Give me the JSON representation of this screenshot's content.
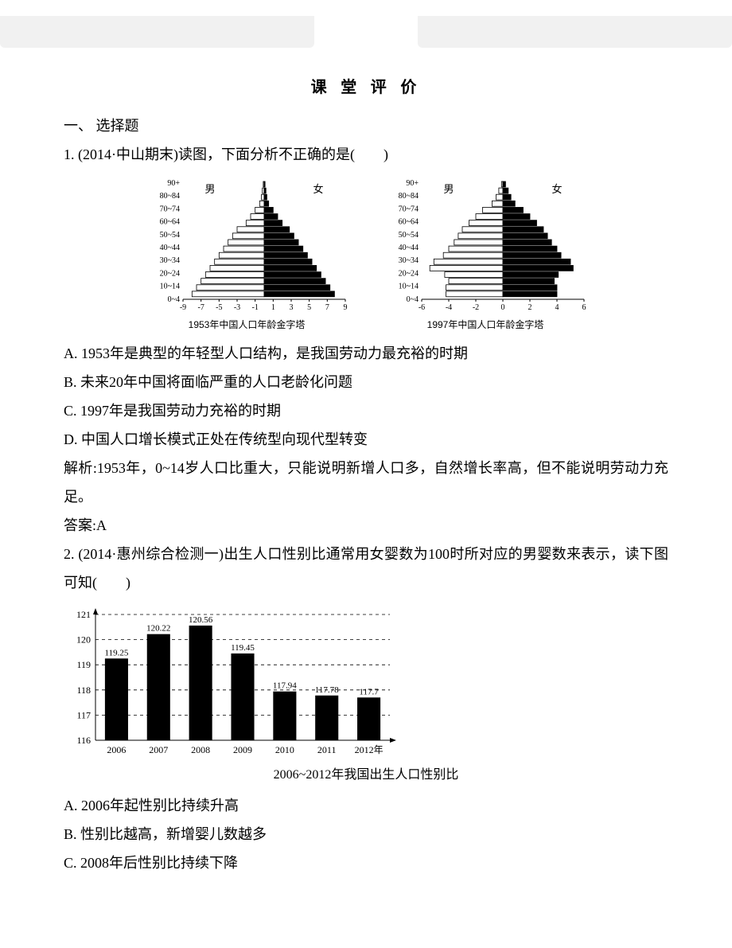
{
  "title": "课 堂 评 价",
  "section": "一、 选择题",
  "q1": {
    "stem": "1. (2014·中山期末)读图，下面分析不正确的是(　　)",
    "optA": "A. 1953年是典型的年轻型人口结构，是我国劳动力最充裕的时期",
    "optB": "B. 未来20年中国将面临严重的人口老龄化问题",
    "optC": "C. 1997年是我国劳动力充裕的时期",
    "optD": "D. 中国人口增长模式正处在传统型向现代型转变",
    "expl": "解析:1953年，0~14岁人口比重大，只能说明新增人口多，自然增长率高，但不能说明劳动力充足。",
    "ans": "答案:A",
    "pyramids": {
      "age_labels": [
        "90+",
        "80~84",
        "70~74",
        "60~64",
        "50~54",
        "40~44",
        "30~34",
        "20~24",
        "10~14",
        "0~4"
      ],
      "male_label": "男",
      "female_label": "女",
      "left": {
        "caption": "1953年中国人口年龄金字塔",
        "ticks": [
          "-9",
          "-7",
          "-5",
          "-3",
          "-1",
          "1",
          "3",
          "5",
          "7",
          "9"
        ],
        "male": [
          0.1,
          0.2,
          0.3,
          0.5,
          1.0,
          1.5,
          2.0,
          3.0,
          3.5,
          4.0,
          4.5,
          5.0,
          5.5,
          6.0,
          6.5,
          7.0,
          7.5,
          8.0
        ],
        "female": [
          0.1,
          0.2,
          0.3,
          0.5,
          1.0,
          1.5,
          2.0,
          2.8,
          3.3,
          3.8,
          4.3,
          4.8,
          5.3,
          5.8,
          6.3,
          6.8,
          7.3,
          7.8
        ],
        "max": 9
      },
      "right": {
        "caption": "1997年中国人口年龄金字塔",
        "ticks": [
          "-6",
          "-4",
          "-2",
          "0",
          "2",
          "4",
          "6"
        ],
        "male": [
          0.1,
          0.3,
          0.5,
          0.8,
          1.5,
          2.0,
          2.5,
          3.0,
          3.3,
          3.6,
          4.0,
          4.4,
          5.1,
          5.4,
          4.3,
          4.0,
          4.2,
          4.2
        ],
        "female": [
          0.2,
          0.4,
          0.6,
          0.9,
          1.5,
          2.0,
          2.5,
          3.0,
          3.3,
          3.6,
          4.0,
          4.3,
          5.0,
          5.2,
          4.1,
          3.8,
          4.0,
          4.0
        ],
        "max": 6
      }
    }
  },
  "q2": {
    "stem": "2. (2014·惠州综合检测一)出生人口性别比通常用女婴数为100时所对应的男婴数来表示，读下图可知(　　)",
    "optA": "A. 2006年起性别比持续升高",
    "optB": "B. 性别比越高，新增婴儿数越多",
    "optC": "C. 2008年后性别比持续下降",
    "bar": {
      "years": [
        "2006",
        "2007",
        "2008",
        "2009",
        "2010",
        "2011",
        "2012年"
      ],
      "values": [
        119.25,
        120.22,
        120.56,
        119.45,
        117.94,
        117.78,
        117.7
      ],
      "labels": [
        "119.25",
        "120.22",
        "120.56",
        "119.45",
        "117.94",
        "117.78",
        "117.7"
      ],
      "ylim": [
        116,
        121
      ],
      "ytick_step": 1,
      "bar_color": "#000000",
      "bg": "#ffffff",
      "grid_color": "#000000",
      "caption": "2006~2012年我国出生人口性别比"
    }
  }
}
